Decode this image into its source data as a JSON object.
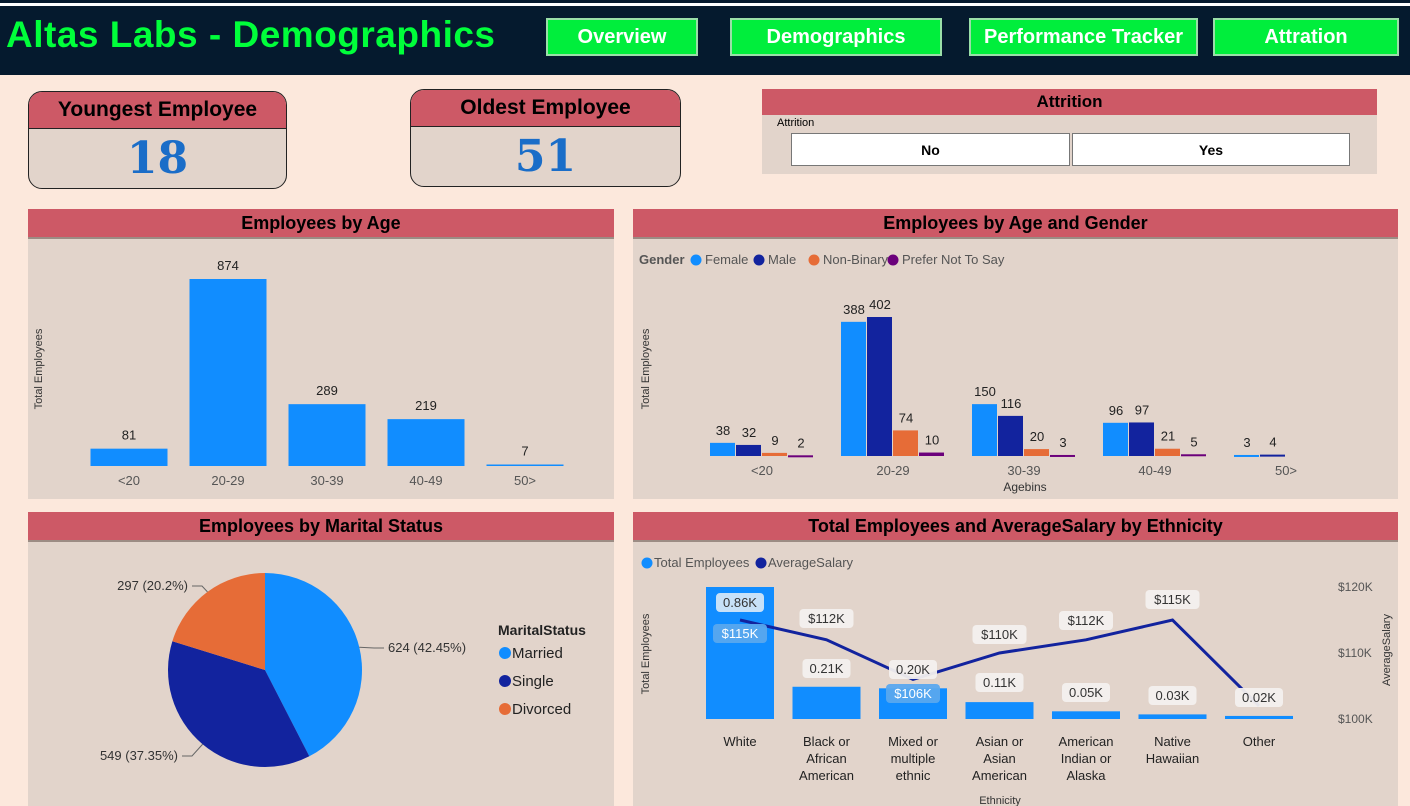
{
  "header": {
    "title": "Altas Labs - Demographics",
    "nav": [
      "Overview",
      "Demographics",
      "Performance Tracker",
      "Attration"
    ]
  },
  "kpis": {
    "youngest": {
      "label": "Youngest Employee",
      "value": "18"
    },
    "oldest": {
      "label": "Oldest Employee",
      "value": "51"
    }
  },
  "attrition_slicer": {
    "title": "Attrition",
    "field_label": "Attrition",
    "options": [
      "No",
      "Yes"
    ]
  },
  "colors": {
    "female": "#118dff",
    "male": "#12239e",
    "non_binary": "#e66c37",
    "prefer_not": "#6b007b",
    "header_red": "#cd5966",
    "nav_green": "#00ee3c"
  },
  "chart_data": [
    {
      "type": "bar",
      "title": "Employees by Age",
      "ylabel": "Total Employees",
      "xlabel": "",
      "categories": [
        "<20",
        "20-29",
        "30-39",
        "40-49",
        "50>"
      ],
      "values": [
        81,
        874,
        289,
        219,
        7
      ],
      "ylim": [
        0,
        874
      ]
    },
    {
      "type": "bar",
      "title": "Employees by Age and Gender",
      "ylabel": "Total Employees",
      "xlabel": "Agebins",
      "legend_title": "Gender",
      "legend_position": "top-left",
      "categories": [
        "<20",
        "20-29",
        "30-39",
        "40-49",
        "50>"
      ],
      "series": [
        {
          "name": "Female",
          "values": [
            38,
            388,
            150,
            96,
            3
          ]
        },
        {
          "name": "Male",
          "values": [
            32,
            402,
            116,
            97,
            4
          ]
        },
        {
          "name": "Non-Binary",
          "values": [
            9,
            74,
            20,
            21,
            null
          ]
        },
        {
          "name": "Prefer Not To Say",
          "values": [
            2,
            10,
            3,
            5,
            null
          ]
        }
      ],
      "ylim": [
        0,
        402
      ]
    },
    {
      "type": "pie",
      "title": "Employees by Marital Status",
      "legend_title": "MaritalStatus",
      "legend_position": "right",
      "categories": [
        "Married",
        "Single",
        "Divorced"
      ],
      "values": [
        624,
        549,
        297
      ],
      "labels": [
        "624 (42.45%)",
        "549 (37.35%)",
        "297 (20.2%)"
      ]
    },
    {
      "type": "bar",
      "title": "Total Employees and AverageSalary by Ethnicity",
      "ylabel": "Total Employees",
      "y2label": "AverageSalary",
      "xlabel": "Ethnicity",
      "legend_position": "top-left",
      "categories": [
        "White",
        "Black or African American",
        "Mixed or multiple ethnic grou...",
        "Asian or Asian American",
        "American Indian or Alaska Native",
        "Native Hawaiian",
        "Other"
      ],
      "series": [
        {
          "name": "Total Employees",
          "values": [
            860,
            210,
            200,
            110,
            50,
            30,
            20
          ],
          "labels": [
            "0.86K",
            "0.21K",
            "0.20K",
            "0.11K",
            "0.05K",
            "0.03K",
            "0.02K"
          ]
        },
        {
          "name": "AverageSalary",
          "values": [
            115000,
            112000,
            106000,
            110000,
            112000,
            115000,
            102000
          ],
          "labels": [
            "$115K",
            "$112K",
            "$106K",
            "$110K",
            "$112K",
            "$115K",
            ""
          ]
        }
      ],
      "y2_ticks": [
        "$120K",
        "$110K",
        "$100K"
      ],
      "y2lim": [
        100000,
        120000
      ]
    }
  ]
}
